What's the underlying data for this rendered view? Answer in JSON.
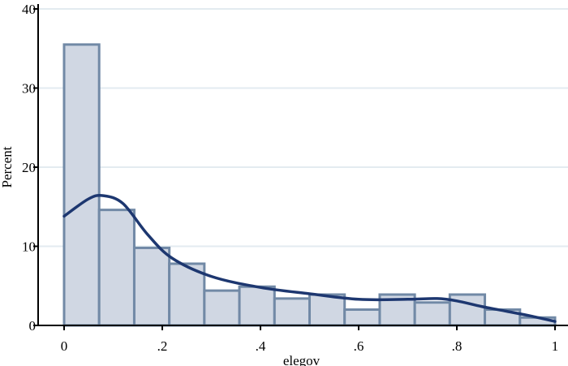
{
  "chart_data": {
    "type": "bar",
    "title": "",
    "xlabel": "elegov",
    "ylabel": "Percent",
    "xlim": [
      0,
      1
    ],
    "ylim": [
      0,
      40
    ],
    "xticks": [
      {
        "value": 0,
        "label": "0"
      },
      {
        "value": 0.2,
        "label": ".2"
      },
      {
        "value": 0.4,
        "label": ".4"
      },
      {
        "value": 0.6,
        "label": ".6"
      },
      {
        "value": 0.8,
        "label": ".8"
      },
      {
        "value": 1,
        "label": "1"
      }
    ],
    "yticks": [
      {
        "value": 0,
        "label": "0"
      },
      {
        "value": 10,
        "label": "10"
      },
      {
        "value": 20,
        "label": "20"
      },
      {
        "value": 30,
        "label": "30"
      },
      {
        "value": 40,
        "label": "40"
      }
    ],
    "grid": true,
    "bins": [
      {
        "start": 0.0,
        "end": 0.0714,
        "value": 35.5
      },
      {
        "start": 0.0714,
        "end": 0.1429,
        "value": 14.6
      },
      {
        "start": 0.1429,
        "end": 0.2143,
        "value": 9.8
      },
      {
        "start": 0.2143,
        "end": 0.2857,
        "value": 7.8
      },
      {
        "start": 0.2857,
        "end": 0.3571,
        "value": 4.4
      },
      {
        "start": 0.3571,
        "end": 0.4286,
        "value": 4.9
      },
      {
        "start": 0.4286,
        "end": 0.5,
        "value": 3.4
      },
      {
        "start": 0.5,
        "end": 0.5714,
        "value": 3.9
      },
      {
        "start": 0.5714,
        "end": 0.6429,
        "value": 2.0
      },
      {
        "start": 0.6429,
        "end": 0.7143,
        "value": 3.9
      },
      {
        "start": 0.7143,
        "end": 0.7857,
        "value": 2.9
      },
      {
        "start": 0.7857,
        "end": 0.8571,
        "value": 3.9
      },
      {
        "start": 0.8571,
        "end": 0.9286,
        "value": 2.0
      },
      {
        "start": 0.9286,
        "end": 1.0,
        "value": 1.0
      }
    ],
    "density": {
      "x": [
        0,
        0.05,
        0.08,
        0.12,
        0.17,
        0.22,
        0.3,
        0.4,
        0.5,
        0.6,
        0.7,
        0.76,
        0.8,
        0.85,
        0.9,
        0.95,
        1.0
      ],
      "y": [
        13.8,
        16.0,
        16.4,
        15.4,
        11.5,
        8.5,
        6.2,
        4.8,
        4.0,
        3.3,
        3.3,
        3.4,
        3.1,
        2.4,
        1.8,
        1.2,
        0.5
      ]
    },
    "colors": {
      "bar_fill": "#d0d7e3",
      "bar_stroke": "#7189a6",
      "density_line": "#1d3770",
      "grid": "#e3ebf0"
    }
  }
}
